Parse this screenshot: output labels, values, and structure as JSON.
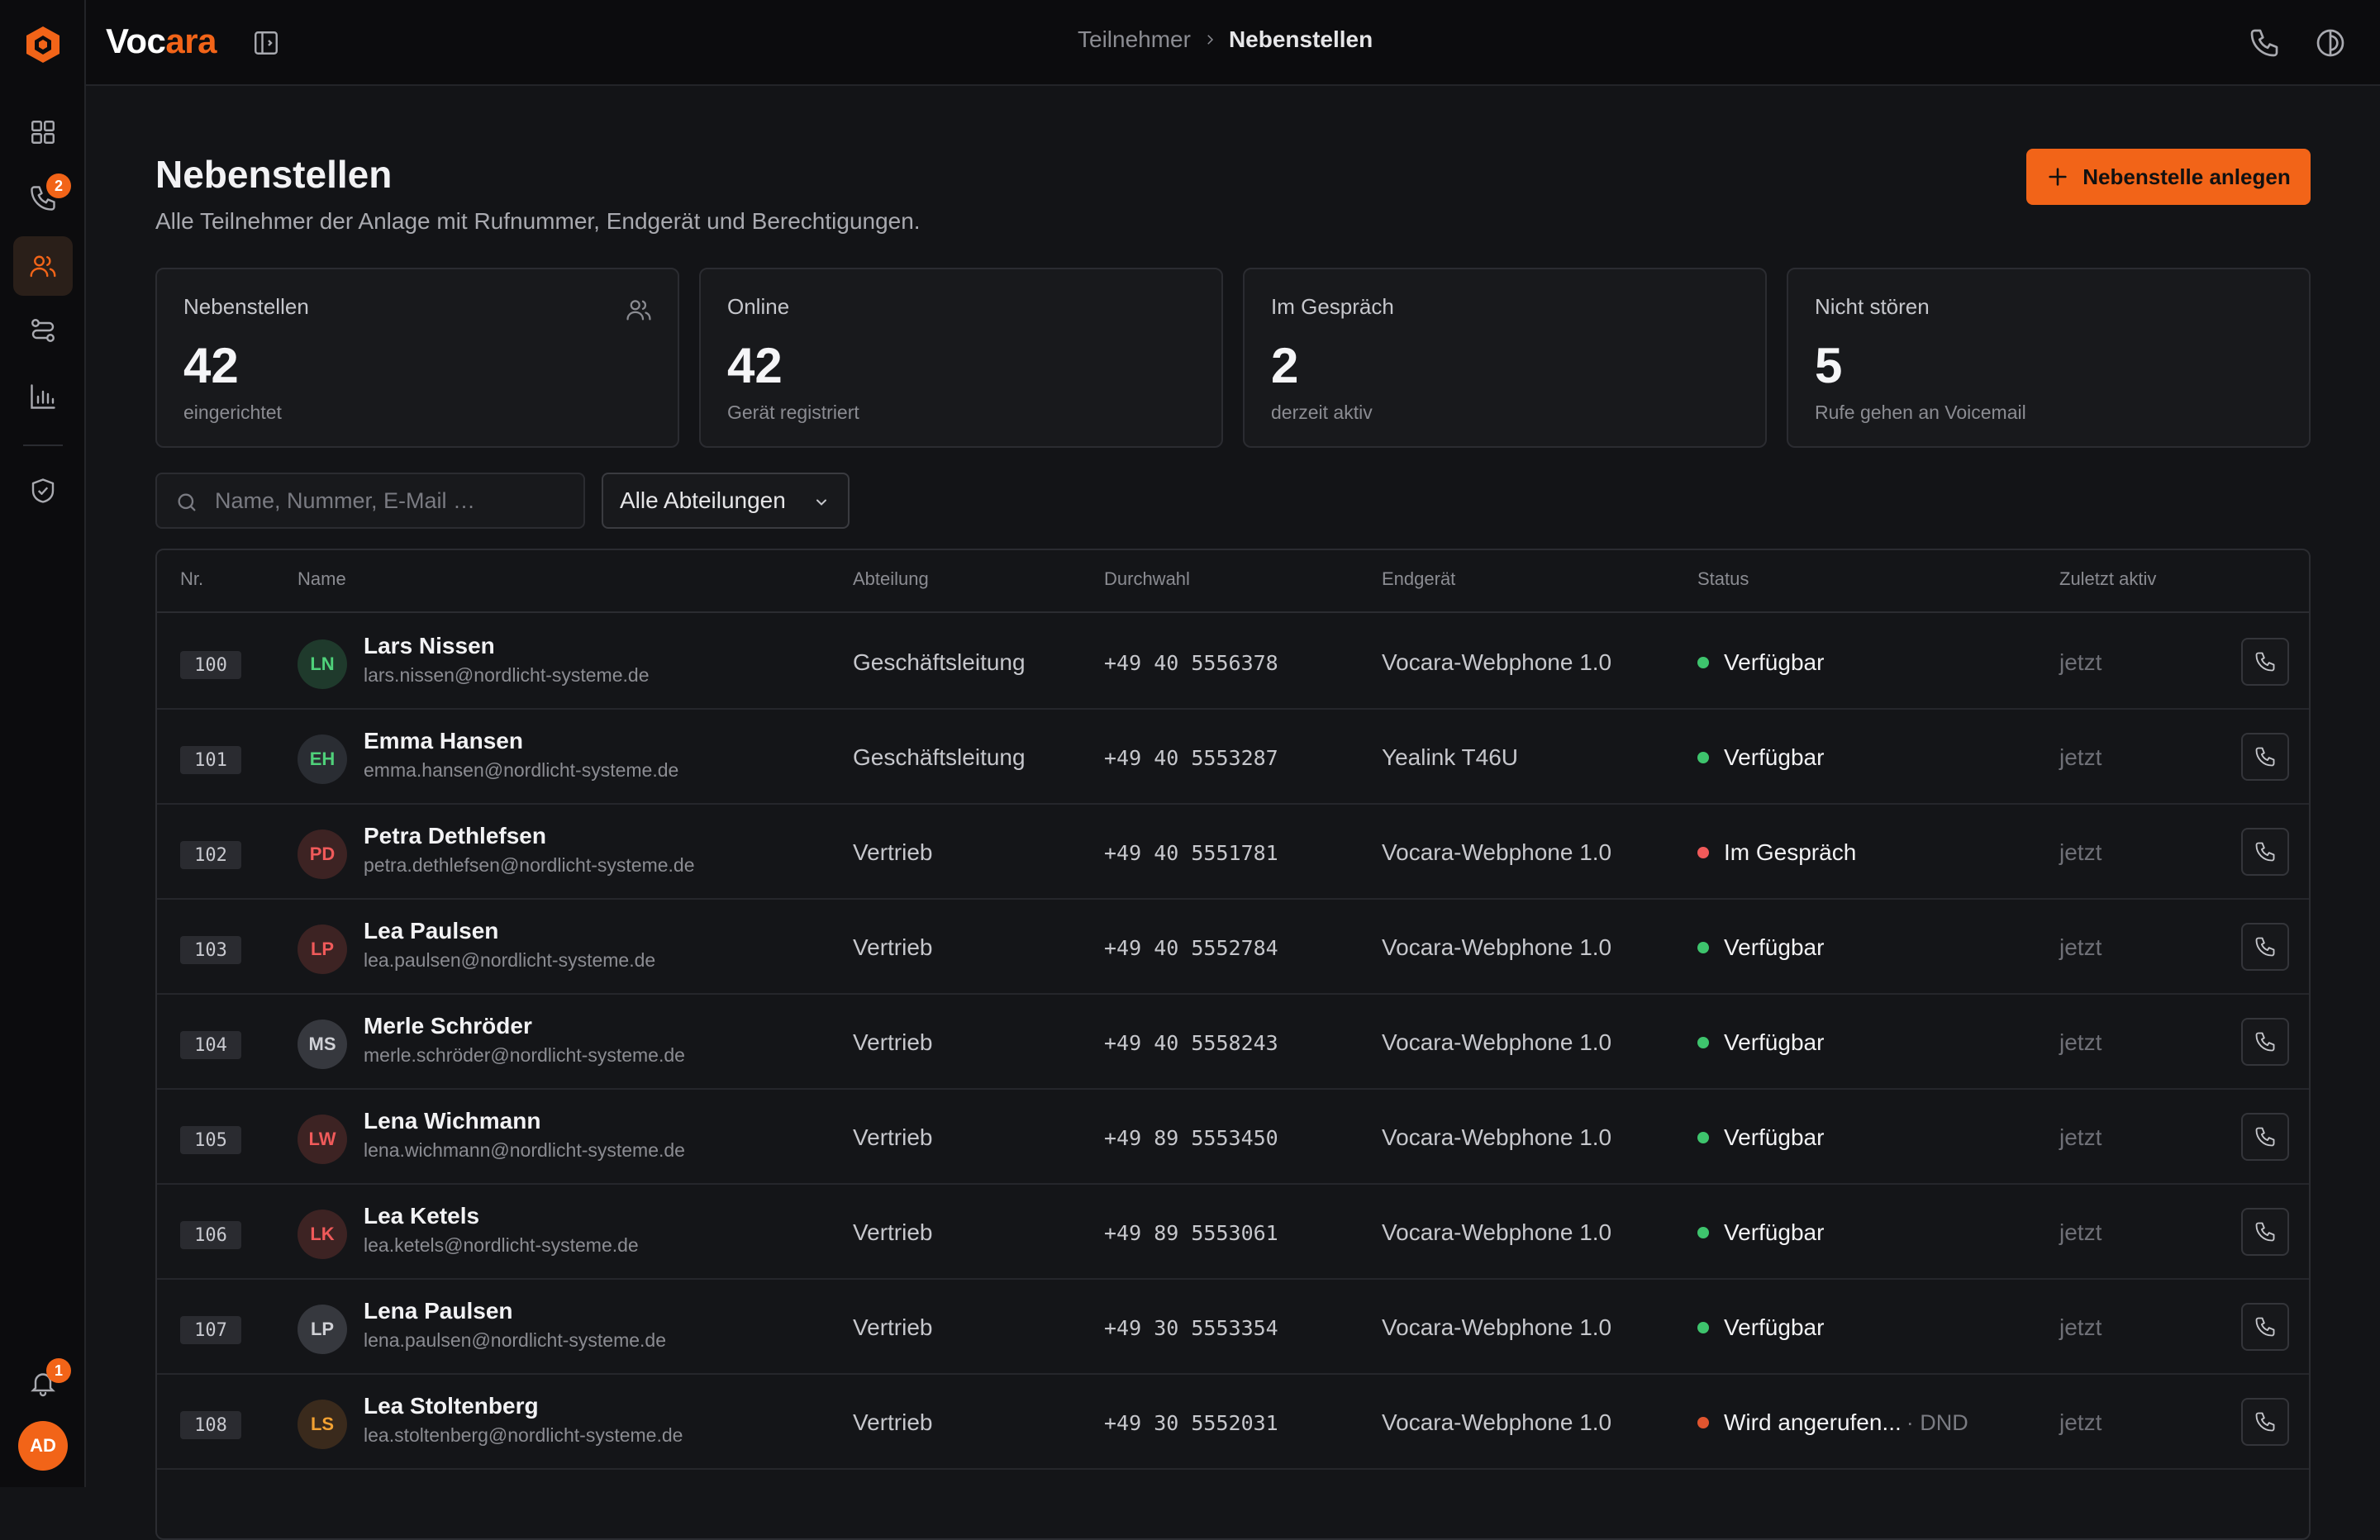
{
  "app": {
    "name_part1": "Voc",
    "name_part2": "ara",
    "accent": "#f26418"
  },
  "sidebar": {
    "calls_badge": "2",
    "notifications_badge": "1",
    "user_initials": "AD"
  },
  "breadcrumb": {
    "parent": "Teilnehmer",
    "current": "Nebenstellen"
  },
  "page": {
    "title": "Nebenstellen",
    "subtitle": "Alle Teilnehmer der Anlage mit Rufnummer, Endgerät und Berechtigungen.",
    "create_button": "Nebenstelle anlegen"
  },
  "stats": [
    {
      "label": "Nebenstellen",
      "value": "42",
      "sub": "eingerichtet"
    },
    {
      "label": "Online",
      "value": "42",
      "sub": "Gerät registriert"
    },
    {
      "label": "Im Gespräch",
      "value": "2",
      "sub": "derzeit aktiv"
    },
    {
      "label": "Nicht stören",
      "value": "5",
      "sub": "Rufe gehen an Voicemail"
    }
  ],
  "filters": {
    "search_placeholder": "Name, Nummer, E-Mail …",
    "department_selected": "Alle Abteilungen"
  },
  "table": {
    "headers": {
      "nr": "Nr.",
      "name": "Name",
      "dept": "Abteilung",
      "dial": "Durchwahl",
      "device": "Endgerät",
      "status": "Status",
      "last": "Zuletzt aktiv"
    },
    "rows": [
      {
        "ext": "100",
        "initials": "LN",
        "name": "Lars Nissen",
        "email": "lars.nissen@nordlicht-systeme.de",
        "dept": "Geschäftsleitung",
        "dial": "+49 40 5556378",
        "device": "Vocara-Webphone 1.0",
        "status": "Verfügbar",
        "dnd": "",
        "last": "jetzt",
        "avatar_bg": "#1f3a2c",
        "avatar_fg": "#4fd17a",
        "dot": "#3ec46d"
      },
      {
        "ext": "101",
        "initials": "EH",
        "name": "Emma Hansen",
        "email": "emma.hansen@nordlicht-systeme.de",
        "dept": "Geschäftsleitung",
        "dial": "+49 40 5553287",
        "device": "Yealink T46U",
        "status": "Verfügbar",
        "dnd": "",
        "last": "jetzt",
        "avatar_bg": "#2a2d33",
        "avatar_fg": "#4fd17a",
        "dot": "#3ec46d"
      },
      {
        "ext": "102",
        "initials": "PD",
        "name": "Petra Dethlefsen",
        "email": "petra.dethlefsen@nordlicht-systeme.de",
        "dept": "Vertrieb",
        "dial": "+49 40 5551781",
        "device": "Vocara-Webphone 1.0",
        "status": "Im Gespräch",
        "dnd": "",
        "last": "jetzt",
        "avatar_bg": "#3d2323",
        "avatar_fg": "#f05a5a",
        "dot": "#f05a5a"
      },
      {
        "ext": "103",
        "initials": "LP",
        "name": "Lea Paulsen",
        "email": "lea.paulsen@nordlicht-systeme.de",
        "dept": "Vertrieb",
        "dial": "+49 40 5552784",
        "device": "Vocara-Webphone 1.0",
        "status": "Verfügbar",
        "dnd": "",
        "last": "jetzt",
        "avatar_bg": "#3d2323",
        "avatar_fg": "#f05a5a",
        "dot": "#3ec46d"
      },
      {
        "ext": "104",
        "initials": "MS",
        "name": "Merle Schröder",
        "email": "merle.schröder@nordlicht-systeme.de",
        "dept": "Vertrieb",
        "dial": "+49 40 5558243",
        "device": "Vocara-Webphone 1.0",
        "status": "Verfügbar",
        "dnd": "",
        "last": "jetzt",
        "avatar_bg": "#36383e",
        "avatar_fg": "#d0d1d6",
        "dot": "#3ec46d"
      },
      {
        "ext": "105",
        "initials": "LW",
        "name": "Lena Wichmann",
        "email": "lena.wichmann@nordlicht-systeme.de",
        "dept": "Vertrieb",
        "dial": "+49 89 5553450",
        "device": "Vocara-Webphone 1.0",
        "status": "Verfügbar",
        "dnd": "",
        "last": "jetzt",
        "avatar_bg": "#3d2323",
        "avatar_fg": "#f05a5a",
        "dot": "#3ec46d"
      },
      {
        "ext": "106",
        "initials": "LK",
        "name": "Lea Ketels",
        "email": "lea.ketels@nordlicht-systeme.de",
        "dept": "Vertrieb",
        "dial": "+49 89 5553061",
        "device": "Vocara-Webphone 1.0",
        "status": "Verfügbar",
        "dnd": "",
        "last": "jetzt",
        "avatar_bg": "#3d2323",
        "avatar_fg": "#f05a5a",
        "dot": "#3ec46d"
      },
      {
        "ext": "107",
        "initials": "LP",
        "name": "Lena Paulsen",
        "email": "lena.paulsen@nordlicht-systeme.de",
        "dept": "Vertrieb",
        "dial": "+49 30 5553354",
        "device": "Vocara-Webphone 1.0",
        "status": "Verfügbar",
        "dnd": "",
        "last": "jetzt",
        "avatar_bg": "#36383e",
        "avatar_fg": "#d0d1d6",
        "dot": "#3ec46d"
      },
      {
        "ext": "108",
        "initials": "LS",
        "name": "Lea Stoltenberg",
        "email": "lea.stoltenberg@nordlicht-systeme.de",
        "dept": "Vertrieb",
        "dial": "+49 30 5552031",
        "device": "Vocara-Webphone 1.0",
        "status": "Wird angerufen...",
        "dnd": "· DND",
        "last": "jetzt",
        "avatar_bg": "#3a2a1c",
        "avatar_fg": "#f2a132",
        "dot": "#e0552f"
      }
    ]
  }
}
